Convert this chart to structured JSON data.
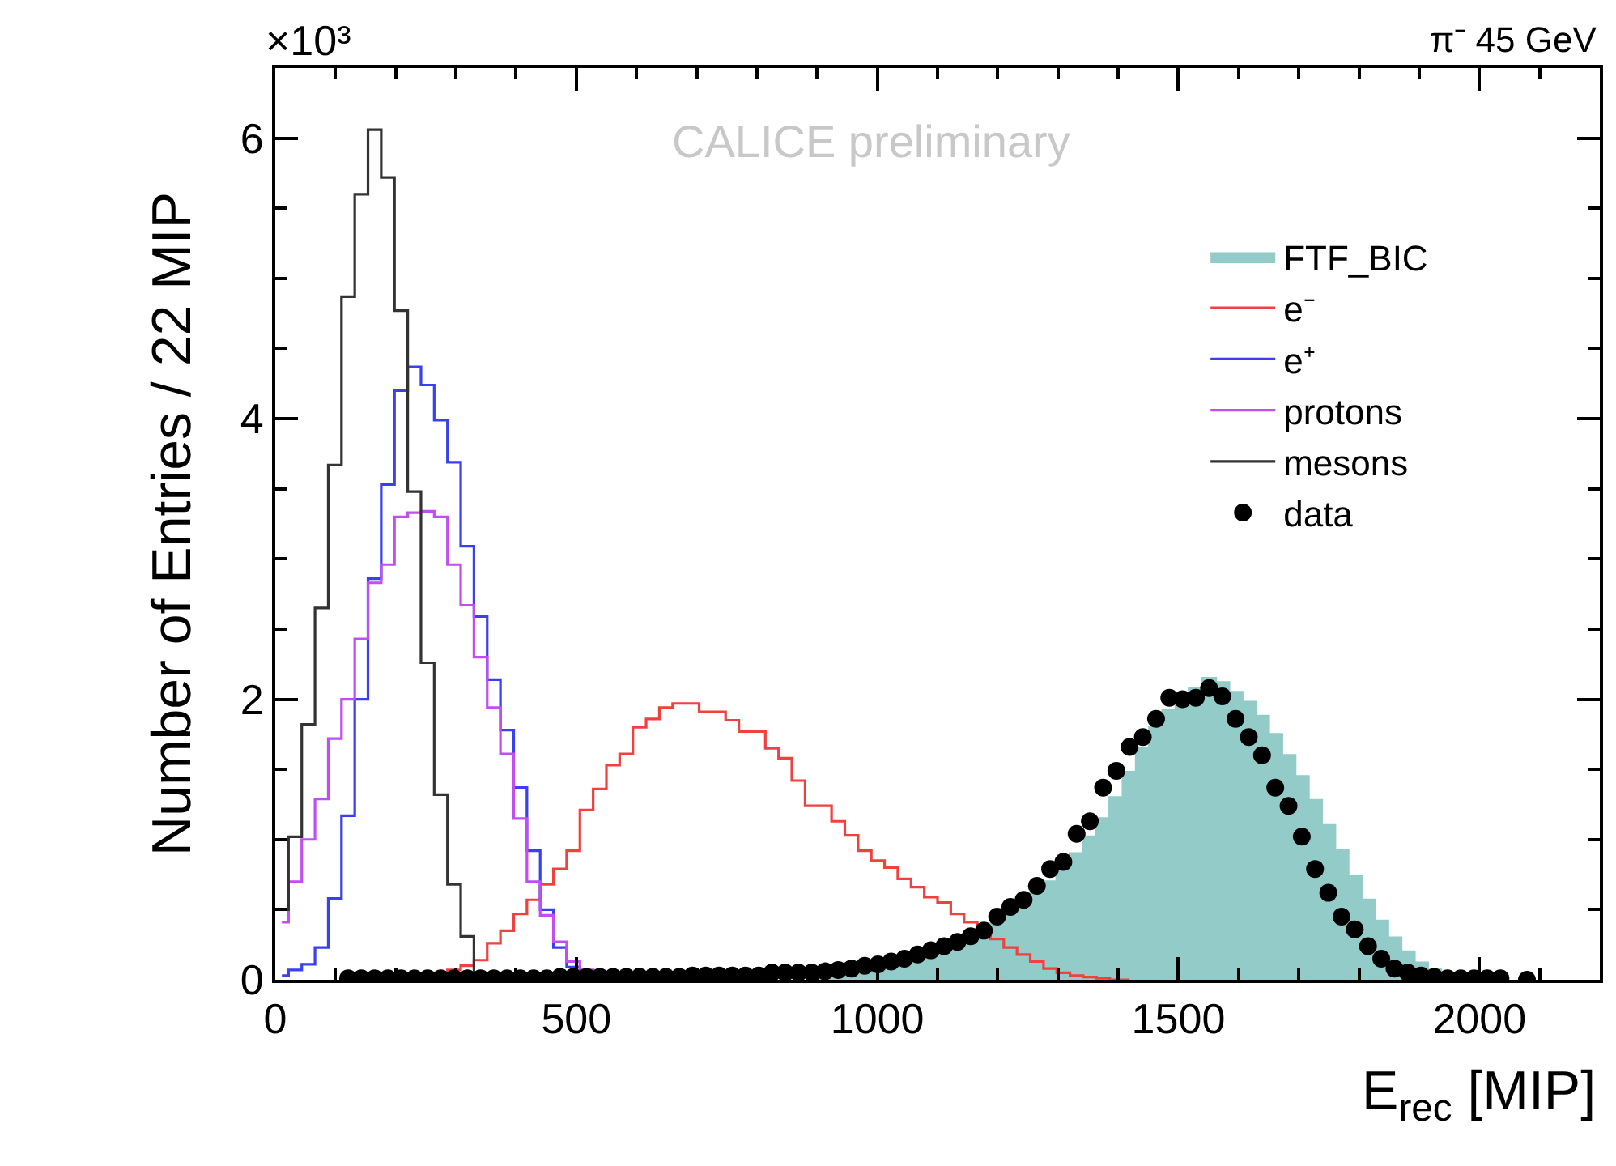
{
  "chart_data": {
    "type": "step",
    "title": "π⁻ 45 GeV",
    "xlabel": "E$_{rec}$ [MIP]",
    "ylabel": "Number of Entries / 22 MIP",
    "annotations": [
      "×10³",
      "CALICE preliminary"
    ],
    "x": [
      11,
      33,
      55,
      77,
      99,
      121,
      143,
      165,
      187,
      209,
      231,
      253,
      275,
      297,
      319,
      341,
      363,
      385,
      407,
      429,
      451,
      473,
      495,
      517,
      539,
      561,
      583,
      605,
      627,
      649,
      671,
      693,
      715,
      737,
      759,
      781,
      803,
      825,
      847,
      869,
      891,
      913,
      935,
      957,
      979,
      1001,
      1023,
      1045,
      1067,
      1089,
      1111,
      1133,
      1155,
      1177,
      1199,
      1221,
      1243,
      1265,
      1287,
      1309,
      1331,
      1353,
      1375,
      1397,
      1419,
      1441,
      1463,
      1485,
      1507,
      1529,
      1551,
      1573,
      1595,
      1617,
      1639,
      1661,
      1683,
      1705,
      1727,
      1749,
      1771,
      1793,
      1815,
      1837,
      1859,
      1881,
      1903,
      1925,
      1947,
      1969,
      1991,
      2013,
      2035,
      2057,
      2079
    ],
    "series": [
      {
        "name": "FTF_BIC",
        "type": "area",
        "color": "#93cbc8",
        "values": [
          null,
          null,
          null,
          null,
          null,
          null,
          null,
          null,
          null,
          null,
          null,
          null,
          null,
          null,
          null,
          null,
          null,
          null,
          null,
          null,
          null,
          null,
          null,
          null,
          null,
          null,
          null,
          null,
          null,
          null,
          null,
          null,
          null,
          null,
          null,
          null,
          null,
          null,
          null,
          null,
          0.02,
          0.03,
          0.04,
          0.05,
          0.06,
          0.08,
          0.1,
          0.12,
          0.15,
          0.18,
          0.21,
          0.25,
          0.29,
          0.34,
          0.4,
          0.46,
          0.54,
          0.62,
          0.7,
          0.8,
          0.9,
          1.02,
          1.15,
          1.3,
          1.48,
          1.65,
          1.8,
          1.92,
          2.02,
          2.08,
          2.15,
          2.12,
          2.05,
          1.98,
          1.88,
          1.75,
          1.6,
          1.45,
          1.28,
          1.1,
          0.92,
          0.74,
          0.57,
          0.42,
          0.3,
          0.2,
          0.12,
          0.07,
          0.03,
          0.01,
          null,
          null,
          null,
          null,
          null
        ]
      },
      {
        "name": "e⁻",
        "color": "#f0413f",
        "values": [
          null,
          null,
          null,
          null,
          null,
          null,
          null,
          null,
          null,
          null,
          null,
          0.03,
          0.05,
          0.07,
          0.1,
          0.14,
          0.26,
          0.35,
          0.47,
          0.57,
          0.68,
          0.79,
          0.92,
          1.21,
          1.36,
          1.53,
          1.61,
          1.8,
          1.86,
          1.94,
          1.97,
          1.97,
          1.91,
          1.91,
          1.85,
          1.77,
          1.77,
          1.65,
          1.58,
          1.42,
          1.24,
          1.24,
          1.13,
          1.03,
          0.92,
          0.85,
          0.8,
          0.72,
          0.66,
          0.59,
          0.55,
          0.47,
          0.41,
          0.35,
          0.29,
          0.23,
          0.18,
          0.13,
          0.08,
          0.05,
          0.03,
          0.02,
          0.01,
          0,
          0,
          null,
          null,
          null,
          null,
          null,
          null,
          null,
          null,
          null,
          null,
          null,
          null,
          null,
          null,
          null,
          null,
          null,
          null,
          null,
          null,
          null,
          null,
          null,
          null,
          null,
          null,
          null,
          null,
          null,
          null
        ]
      },
      {
        "name": "e⁺",
        "color": "#3a3ff0",
        "values": [
          0.03,
          0.07,
          0.11,
          0.23,
          0.58,
          1.17,
          2.0,
          2.86,
          3.53,
          4.2,
          4.37,
          4.24,
          3.99,
          3.69,
          3.09,
          2.59,
          2.14,
          1.78,
          1.37,
          0.92,
          0.5,
          0.23,
          0.09,
          0.03,
          null,
          null,
          null,
          null,
          null,
          null,
          null,
          null,
          null,
          null,
          null,
          null,
          null,
          null,
          null,
          null,
          null,
          null,
          null,
          null,
          null,
          null,
          null,
          null,
          null,
          null,
          null,
          null,
          null,
          null,
          null,
          null,
          null,
          null,
          null,
          null,
          null,
          null,
          null,
          null,
          null,
          null,
          null,
          null,
          null,
          null,
          null,
          null,
          null,
          null,
          null,
          null,
          null,
          null,
          null,
          null,
          null,
          null,
          null,
          null,
          null,
          null,
          null,
          null,
          null,
          null,
          null,
          null,
          null,
          null,
          null
        ]
      },
      {
        "name": "protons",
        "color": "#c04ef0",
        "values": [
          0.41,
          0.7,
          1.0,
          1.29,
          1.72,
          2.0,
          2.43,
          2.83,
          2.96,
          3.3,
          3.33,
          3.34,
          3.3,
          2.96,
          2.67,
          2.3,
          1.94,
          1.61,
          1.15,
          0.7,
          0.46,
          0.27,
          0.13,
          0.07,
          0.03,
          null,
          null,
          null,
          null,
          null,
          null,
          null,
          null,
          null,
          null,
          null,
          null,
          null,
          null,
          null,
          null,
          null,
          null,
          null,
          null,
          null,
          null,
          null,
          null,
          null,
          null,
          null,
          null,
          null,
          null,
          null,
          null,
          null,
          null,
          null,
          null,
          null,
          null,
          null,
          null,
          null,
          null,
          null,
          null,
          null,
          null,
          null,
          null,
          null,
          null,
          null,
          null,
          null,
          null,
          null,
          null,
          null,
          null,
          null,
          null,
          null,
          null,
          null,
          null,
          null,
          null,
          null,
          null,
          null,
          null
        ]
      },
      {
        "name": "mesons",
        "color": "#333333",
        "values": [
          0.5,
          1.02,
          1.82,
          2.65,
          3.67,
          4.87,
          5.6,
          6.06,
          5.72,
          4.77,
          3.48,
          2.26,
          1.32,
          0.68,
          0.31,
          0.03,
          null,
          null,
          null,
          null,
          null,
          null,
          null,
          null,
          null,
          null,
          null,
          null,
          null,
          null,
          null,
          null,
          null,
          null,
          null,
          null,
          null,
          null,
          null,
          null,
          null,
          null,
          null,
          null,
          null,
          null,
          null,
          null,
          null,
          null,
          null,
          null,
          null,
          null,
          null,
          null,
          null,
          null,
          null,
          null,
          null,
          null,
          null,
          null,
          null,
          null,
          null,
          null,
          null,
          null,
          null,
          null,
          null,
          null,
          null,
          null,
          null,
          null,
          null,
          null,
          null,
          null,
          null,
          null,
          null,
          null,
          null,
          null,
          null,
          null,
          null,
          null,
          null,
          null,
          null
        ]
      },
      {
        "name": "data",
        "type": "scatter",
        "marker": "circle",
        "color": "#000000",
        "values": [
          null,
          null,
          null,
          null,
          null,
          0.01,
          0.01,
          0.01,
          0.01,
          0.01,
          0.01,
          0.01,
          0.01,
          0.01,
          0.01,
          0.01,
          0.01,
          0.01,
          0.01,
          0.01,
          0.01,
          0.02,
          0.02,
          0.02,
          0.02,
          0.02,
          0.02,
          0.02,
          0.02,
          0.02,
          0.02,
          0.03,
          0.03,
          0.03,
          0.03,
          0.03,
          0.03,
          0.05,
          0.05,
          0.05,
          0.05,
          0.06,
          0.07,
          0.08,
          0.1,
          0.11,
          0.13,
          0.15,
          0.18,
          0.21,
          0.24,
          0.27,
          0.31,
          0.35,
          0.45,
          0.52,
          0.57,
          0.67,
          0.79,
          0.84,
          1.04,
          1.13,
          1.37,
          1.49,
          1.66,
          1.73,
          1.86,
          2.01,
          2.0,
          2.01,
          2.08,
          2.02,
          1.86,
          1.73,
          1.6,
          1.37,
          1.24,
          1.02,
          0.79,
          0.62,
          0.45,
          0.36,
          0.24,
          0.15,
          0.08,
          0.05,
          0.03,
          0.02,
          0.01,
          0.01,
          0.01,
          0.01,
          0.01,
          null,
          0
        ]
      }
    ],
    "xlim": [
      0,
      2200
    ],
    "xticks": [
      0,
      500,
      1000,
      1500,
      2000
    ],
    "ylim": [
      0,
      6.5
    ],
    "yticks": [
      0,
      2,
      4,
      6
    ],
    "legend": "top right"
  }
}
